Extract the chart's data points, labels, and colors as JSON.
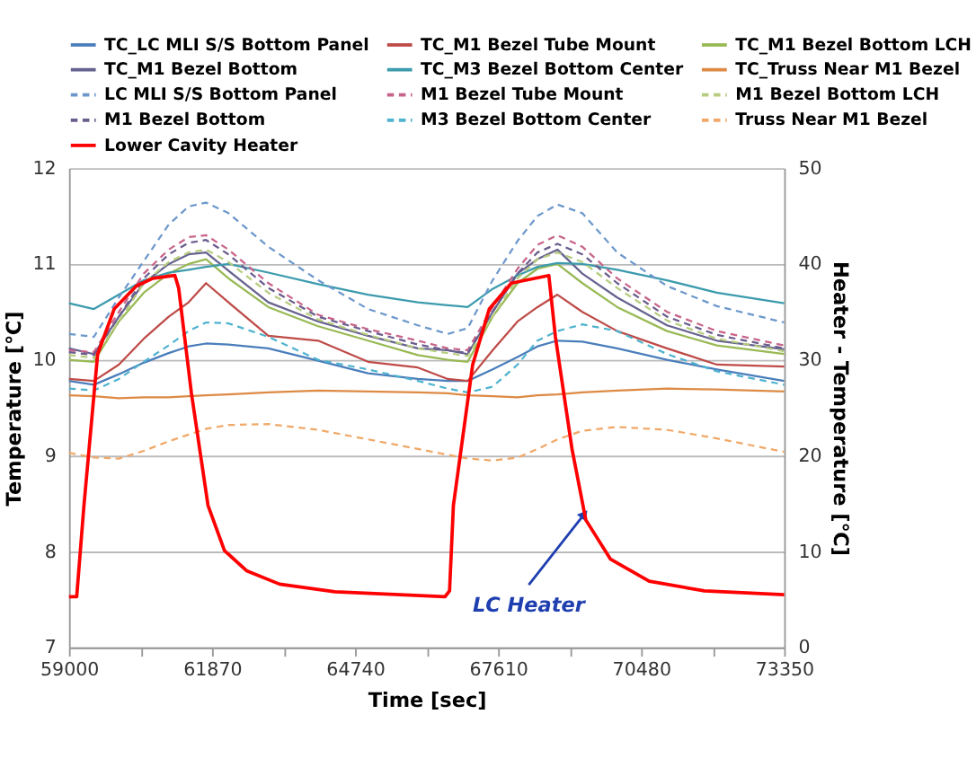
{
  "chart_data": {
    "type": "line",
    "xlabel": "Time [sec]",
    "ylabel": "Temperature [℃]",
    "y2label": "Heater - Temperature [℃]",
    "xlim": [
      59000,
      73350
    ],
    "xticks": [
      59000,
      {
        "value": 60435,
        "label": null
      },
      61870,
      {
        "value": 63305,
        "label": null
      },
      64740,
      {
        "value": 66175,
        "label": null
      },
      67610,
      {
        "value": 69045,
        "label": null
      },
      70480,
      {
        "value": 71915,
        "label": null
      },
      73350
    ],
    "ylim": [
      7,
      12
    ],
    "yticks": [
      7,
      8,
      9,
      10,
      11,
      12
    ],
    "y2lim": [
      0,
      50
    ],
    "y2ticks": [
      0,
      10,
      20,
      30,
      40,
      50
    ],
    "grid": "y",
    "legend": "top",
    "marker": "none",
    "x": [
      59000,
      59500,
      60000,
      60500,
      61000,
      61400,
      61750,
      62200,
      63000,
      64000,
      65000,
      66000,
      66600,
      67000,
      67500,
      68000,
      68400,
      68800,
      69300,
      70000,
      71000,
      72000,
      73350
    ],
    "series": [
      {
        "name": "TC_LC MLI S/S Bottom Panel",
        "color": "#4a7ebb",
        "line_style": "solid",
        "values": [
          9.78,
          9.74,
          9.85,
          9.97,
          10.07,
          10.14,
          10.17,
          10.16,
          10.12,
          9.99,
          9.86,
          9.8,
          9.78,
          9.78,
          9.9,
          10.03,
          10.14,
          10.2,
          10.19,
          10.12,
          10.0,
          9.9,
          9.78
        ]
      },
      {
        "name": "TC_M1 Bezel Tube Mount",
        "color": "#be4b48",
        "line_style": "solid",
        "values": [
          9.8,
          9.78,
          9.95,
          10.22,
          10.45,
          10.6,
          10.8,
          10.6,
          10.25,
          10.2,
          9.98,
          9.92,
          9.8,
          9.78,
          10.1,
          10.4,
          10.55,
          10.68,
          10.5,
          10.3,
          10.12,
          9.95,
          9.93
        ]
      },
      {
        "name": "TC_M1 Bezel Bottom LCH",
        "color": "#98b954",
        "line_style": "solid",
        "values": [
          10.0,
          9.98,
          10.4,
          10.7,
          10.9,
          11.0,
          11.05,
          10.85,
          10.55,
          10.35,
          10.2,
          10.05,
          10.0,
          9.98,
          10.45,
          10.8,
          10.95,
          11.0,
          10.8,
          10.55,
          10.3,
          10.15,
          10.06
        ]
      },
      {
        "name": "TC_M1 Bezel Bottom",
        "color": "#66628f",
        "line_style": "solid",
        "values": [
          10.12,
          10.06,
          10.45,
          10.8,
          11.0,
          11.1,
          11.12,
          10.93,
          10.6,
          10.4,
          10.25,
          10.12,
          10.1,
          10.06,
          10.5,
          10.9,
          11.05,
          11.15,
          10.9,
          10.65,
          10.36,
          10.2,
          10.11
        ]
      },
      {
        "name": "TC_M3 Bezel Bottom Center",
        "color": "#3c9bad",
        "line_style": "solid",
        "values": [
          10.59,
          10.53,
          10.68,
          10.83,
          10.91,
          10.94,
          10.97,
          11.0,
          10.91,
          10.79,
          10.68,
          10.6,
          10.57,
          10.55,
          10.74,
          10.88,
          10.97,
          11.01,
          11.0,
          10.94,
          10.83,
          10.7,
          10.59
        ]
      },
      {
        "name": "TC_Truss Near M1 Bezel",
        "color": "#dd8a45",
        "line_style": "solid",
        "values": [
          9.63,
          9.62,
          9.6,
          9.61,
          9.61,
          9.62,
          9.63,
          9.64,
          9.66,
          9.68,
          9.67,
          9.66,
          9.65,
          9.63,
          9.62,
          9.61,
          9.63,
          9.64,
          9.66,
          9.68,
          9.7,
          9.69,
          9.67
        ]
      },
      {
        "name": "LC MLI S/S Bottom Panel",
        "color": "#6d98cc",
        "line_style": "dashed",
        "values": [
          10.27,
          10.24,
          10.65,
          11.03,
          11.41,
          11.6,
          11.64,
          11.53,
          11.18,
          10.83,
          10.53,
          10.36,
          10.27,
          10.33,
          10.83,
          11.24,
          11.5,
          11.62,
          11.53,
          11.12,
          10.77,
          10.56,
          10.39
        ]
      },
      {
        "name": "M1 Bezel Tube Mount",
        "color": "#c8638a",
        "line_style": "dashed",
        "values": [
          10.1,
          10.08,
          10.5,
          10.9,
          11.15,
          11.28,
          11.3,
          11.15,
          10.8,
          10.47,
          10.32,
          10.2,
          10.12,
          10.1,
          10.55,
          10.95,
          11.2,
          11.3,
          11.18,
          10.85,
          10.5,
          10.3,
          10.15
        ]
      },
      {
        "name": "M1 Bezel Bottom LCH",
        "color": "#b6cc7e",
        "line_style": "dashed",
        "values": [
          10.05,
          10.02,
          10.4,
          10.8,
          11.02,
          11.12,
          11.15,
          11.02,
          10.7,
          10.42,
          10.26,
          10.12,
          10.07,
          10.04,
          10.45,
          10.85,
          11.05,
          11.12,
          11.02,
          10.75,
          10.41,
          10.22,
          10.09
        ]
      },
      {
        "name": "M1 Bezel Bottom",
        "color": "#6a5c8c",
        "line_style": "dashed",
        "values": [
          10.08,
          10.05,
          10.45,
          10.85,
          11.1,
          11.22,
          11.25,
          11.1,
          10.75,
          10.45,
          10.3,
          10.16,
          10.1,
          10.07,
          10.5,
          10.9,
          11.12,
          11.21,
          11.1,
          10.8,
          10.45,
          10.26,
          10.12
        ]
      },
      {
        "name": "M3 Bezel Bottom Center",
        "color": "#4fb3cf",
        "line_style": "dashed",
        "values": [
          9.7,
          9.68,
          9.8,
          9.98,
          10.15,
          10.3,
          10.39,
          10.38,
          10.24,
          10.0,
          9.9,
          9.78,
          9.7,
          9.66,
          9.72,
          9.95,
          10.2,
          10.3,
          10.37,
          10.3,
          10.06,
          9.88,
          9.74
        ]
      },
      {
        "name": "Truss Near M1 Bezel",
        "color": "#f0a868",
        "line_style": "dashed",
        "values": [
          9.03,
          8.98,
          8.97,
          9.05,
          9.15,
          9.22,
          9.28,
          9.32,
          9.33,
          9.27,
          9.17,
          9.07,
          9.01,
          8.97,
          8.95,
          8.98,
          9.07,
          9.17,
          9.26,
          9.3,
          9.27,
          9.18,
          9.04
        ]
      },
      {
        "name": "Lower Cavity Heater",
        "color": "#ff0000",
        "line_style": "solid",
        "axis": "y2",
        "x": [
          59000,
          59155,
          59300,
          59575,
          59906,
          60350,
          60683,
          61125,
          61200,
          61457,
          61790,
          62120,
          62563,
          63226,
          64335,
          66546,
          66636,
          66713,
          67100,
          67433,
          67875,
          68628,
          68760,
          69093,
          69370,
          69867,
          70643,
          71750,
          73350
        ],
        "values": [
          5.3,
          5.3,
          14.8,
          30.6,
          35.3,
          37.7,
          38.5,
          38.8,
          37.5,
          26.5,
          14.8,
          10.1,
          8.0,
          6.6,
          5.8,
          5.3,
          5.9,
          14.8,
          29.5,
          35.3,
          38.0,
          38.8,
          32.4,
          20.7,
          13.3,
          9.2,
          6.9,
          5.9,
          5.5
        ]
      }
    ],
    "annotations": [
      {
        "text": "LC Heater",
        "x": 69340,
        "y": 8.39
      }
    ]
  }
}
